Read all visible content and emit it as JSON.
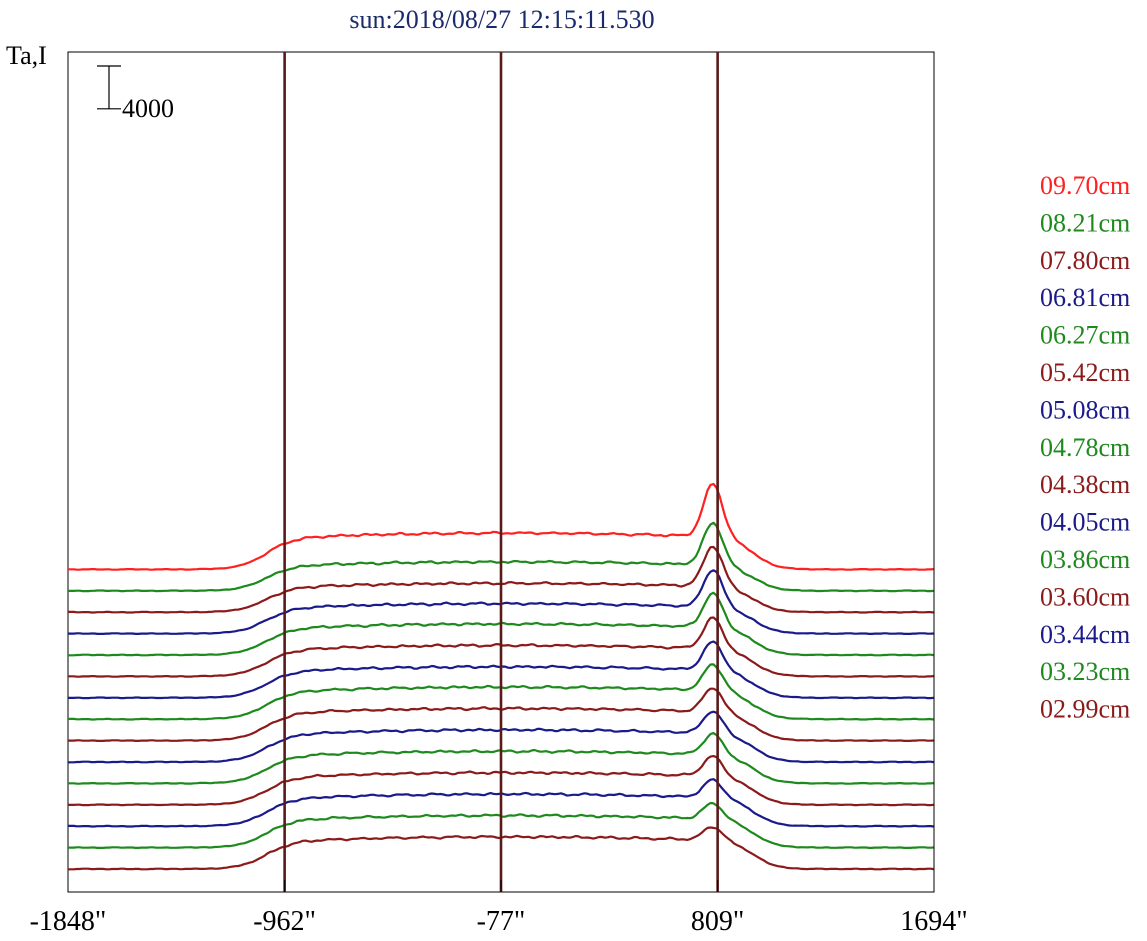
{
  "chart_data": {
    "type": "line",
    "title": "sun:2018/08/27 12:15:11.530",
    "ylabel": "Ta,I",
    "scale_bar": {
      "value": 4000,
      "label": "4000"
    },
    "x_tick_labels": [
      "-1848\"",
      "-962\"",
      "-77\"",
      "809\"",
      "1694\""
    ],
    "xlim": [
      -1848,
      1694
    ],
    "x_ticks": [
      -1848,
      -962,
      -77,
      809,
      1694
    ],
    "vertical_markers": [
      -962,
      -77,
      809
    ],
    "marker_color": "#5a1a1a",
    "y_offset_step": 2000,
    "series": [
      {
        "name": "09.70cm",
        "color": "#ff2020",
        "baseline": 28000,
        "peak": 5000,
        "disk": 3400
      },
      {
        "name": "08.21cm",
        "color": "#1e8a1e",
        "baseline": 26000,
        "peak": 4000,
        "disk": 2700
      },
      {
        "name": "07.80cm",
        "color": "#8b1a1a",
        "baseline": 24000,
        "peak": 3800,
        "disk": 2700
      },
      {
        "name": "06.81cm",
        "color": "#1a1a8a",
        "baseline": 22000,
        "peak": 3500,
        "disk": 2800
      },
      {
        "name": "06.27cm",
        "color": "#1e8a1e",
        "baseline": 20000,
        "peak": 3200,
        "disk": 2900
      },
      {
        "name": "05.42cm",
        "color": "#8b1a1a",
        "baseline": 18000,
        "peak": 2900,
        "disk": 2900
      },
      {
        "name": "05.08cm",
        "color": "#1a1a8a",
        "baseline": 16000,
        "peak": 2700,
        "disk": 2900
      },
      {
        "name": "04.78cm",
        "color": "#1e8a1e",
        "baseline": 14000,
        "peak": 2500,
        "disk": 3000
      },
      {
        "name": "04.38cm",
        "color": "#8b1a1a",
        "baseline": 12000,
        "peak": 2300,
        "disk": 3000
      },
      {
        "name": "04.05cm",
        "color": "#1a1a8a",
        "baseline": 10000,
        "peak": 2100,
        "disk": 3000
      },
      {
        "name": "03.86cm",
        "color": "#1e8a1e",
        "baseline": 8000,
        "peak": 2000,
        "disk": 3000
      },
      {
        "name": "03.60cm",
        "color": "#8b1a1a",
        "baseline": 6000,
        "peak": 1900,
        "disk": 3000
      },
      {
        "name": "03.44cm",
        "color": "#1a1a8a",
        "baseline": 4000,
        "peak": 1700,
        "disk": 3000
      },
      {
        "name": "03.23cm",
        "color": "#1e8a1e",
        "baseline": 2000,
        "peak": 1500,
        "disk": 3000
      },
      {
        "name": "02.99cm",
        "color": "#8b1a1a",
        "baseline": 0,
        "peak": 1300,
        "disk": 3000
      }
    ]
  }
}
